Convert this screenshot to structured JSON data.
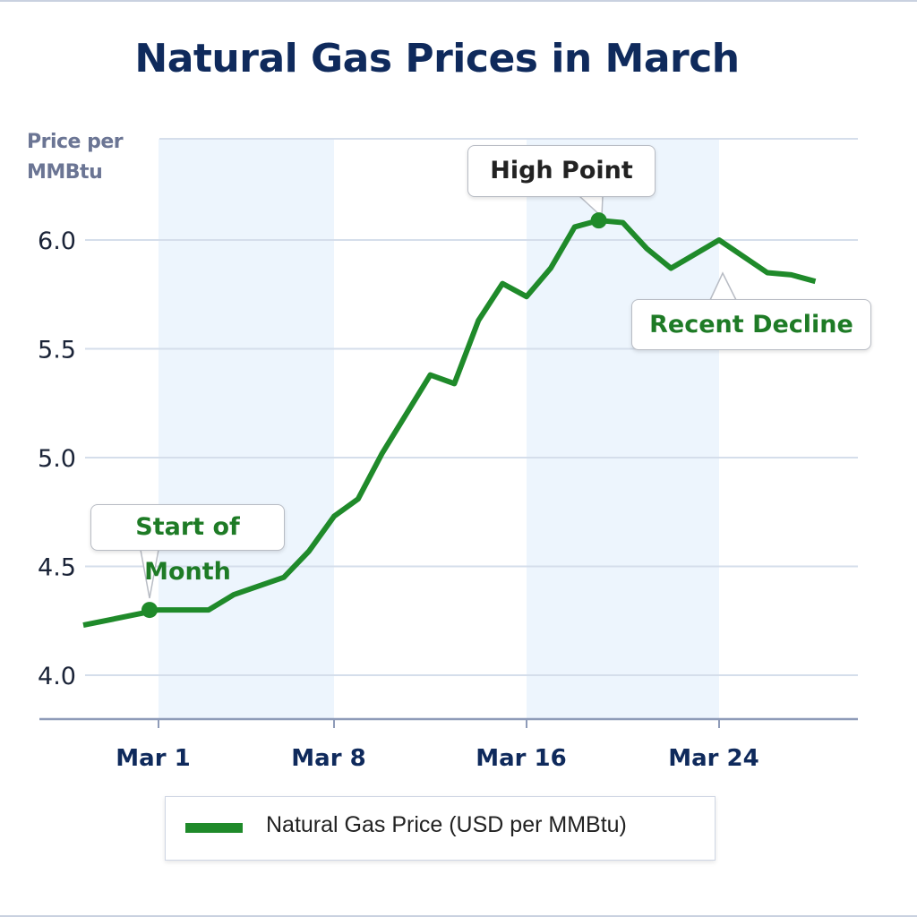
{
  "chart_data": {
    "type": "line",
    "title": "Natural Gas Prices in March",
    "ylabel": "Price per MMBtu",
    "xlabel": "",
    "ylim": [
      4.0,
      6.45
    ],
    "yticks": [
      "4.0",
      "4.5",
      "5.0",
      "5.5",
      "6.0"
    ],
    "xticks": [
      "Mar 1",
      "Mar 8",
      "Mar 16",
      "Mar 24"
    ],
    "grid": "horizontal",
    "shaded_ranges": [
      [
        "Mar 1",
        "Mar 8"
      ],
      [
        "Mar 16",
        "Mar 24"
      ]
    ],
    "legend_position": "bottom",
    "series": [
      {
        "name": "Natural Gas Price (USD per MMBtu)",
        "color": "#1f8a2a",
        "x": [
          "Feb 26",
          "Mar 1",
          "Mar 3",
          "Mar 4",
          "Mar 6",
          "Mar 7",
          "Mar 8",
          "Mar 9",
          "Mar 10",
          "Mar 11",
          "Mar 12",
          "Mar 13",
          "Mar 14",
          "Mar 15",
          "Mar 16",
          "Mar 17",
          "Mar 18",
          "Mar 19",
          "Mar 20",
          "Mar 21",
          "Mar 22",
          "Mar 24",
          "Mar 26",
          "Mar 27",
          "Mar 28"
        ],
        "values": [
          4.23,
          4.3,
          4.3,
          4.37,
          4.45,
          4.57,
          4.73,
          4.81,
          5.02,
          5.2,
          5.38,
          5.34,
          5.63,
          5.8,
          5.74,
          5.87,
          6.06,
          6.09,
          6.08,
          5.96,
          5.87,
          6.0,
          5.85,
          5.84,
          5.81
        ]
      }
    ],
    "annotations": [
      {
        "text": "Start of Month",
        "x": "Mar 1",
        "y": 4.3,
        "color": "#1e7b26"
      },
      {
        "text": "High Point",
        "x": "Mar 19",
        "y": 6.09,
        "color": "#222222"
      },
      {
        "text": "Recent Decline",
        "x": "Mar 24",
        "y": 5.9,
        "color": "#1e7b26"
      }
    ]
  }
}
